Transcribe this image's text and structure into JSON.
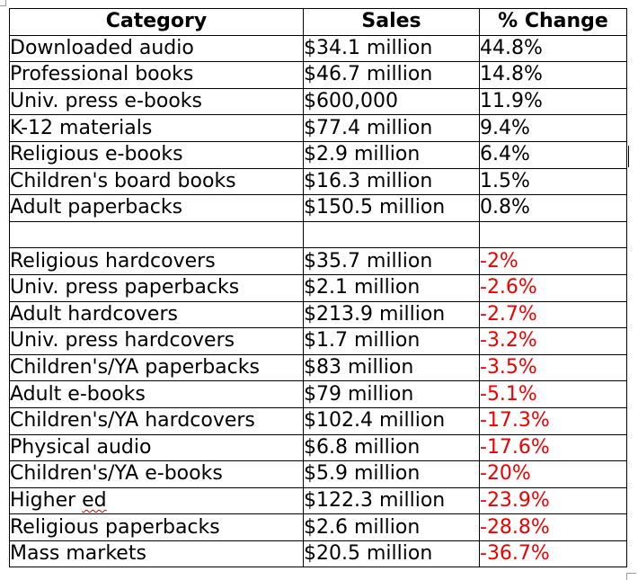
{
  "headers": {
    "category": "Category",
    "sales": "Sales",
    "change": "% Change"
  },
  "gains": [
    {
      "category": "Downloaded audio",
      "sales": "$34.1 million",
      "change": "44.8%"
    },
    {
      "category": "Professional books",
      "sales": "$46.7 million",
      "change": "14.8%"
    },
    {
      "category": "Univ. press e-books",
      "sales": "$600,000",
      "change": "11.9%"
    },
    {
      "category": "K-12 materials",
      "sales": "$77.4 million",
      "change": "9.4%"
    },
    {
      "category": "Religious e-books",
      "sales": "$2.9 million",
      "change": "6.4%"
    },
    {
      "category": "Children's board books",
      "sales": "$16.3 million",
      "change": "1.5%"
    },
    {
      "category": "Adult paperbacks",
      "sales": "$150.5 million",
      "change": "0.8%"
    }
  ],
  "losses": [
    {
      "category": "Religious hardcovers",
      "sales": "$35.7 million",
      "change": "-2%"
    },
    {
      "category": "Univ. press paperbacks",
      "sales": "$2.1 million",
      "change": "-2.6%"
    },
    {
      "category": "Adult hardcovers",
      "sales": "$213.9 million",
      "change": "-2.7%"
    },
    {
      "category": "Univ. press hardcovers",
      "sales": "$1.7 million",
      "change": "-3.2%"
    },
    {
      "category": "Children's/YA paperbacks",
      "sales": "$83 million",
      "change": "-3.5%"
    },
    {
      "category": "Adult e-books",
      "sales": "$79 million",
      "change": "-5.1%"
    },
    {
      "category": "Children's/YA hardcovers",
      "sales": "$102.4 million",
      "change": "-17.3%"
    },
    {
      "category": "Physical audio",
      "sales": "$6.8 million",
      "change": "-17.6%"
    },
    {
      "category": "Children's/YA e-books",
      "sales": "$5.9 million",
      "change": "-20%"
    },
    {
      "category": "Higher ed",
      "sales": "$122.3 million",
      "change": "-23.9%"
    },
    {
      "category": "Religious paperbacks",
      "sales": "$2.6 million",
      "change": "-28.8%"
    },
    {
      "category": "Mass markets",
      "sales": "$20.5 million",
      "change": "-36.7%"
    }
  ],
  "colors": {
    "negative": "#ee0000",
    "positive": "#000000",
    "spellcheck": "#d00000"
  },
  "spellcheck_flag": {
    "word": "ed",
    "style": "wavy-underline"
  }
}
